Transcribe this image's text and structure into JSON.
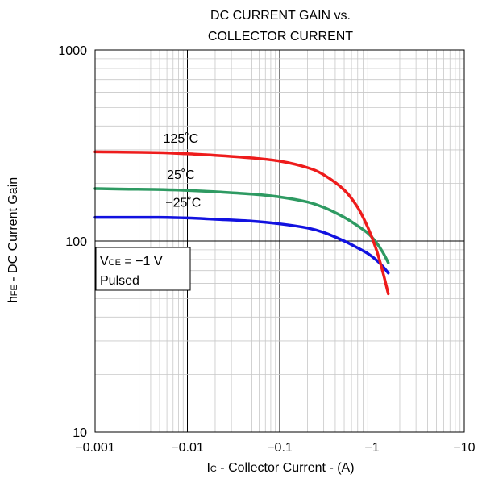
{
  "chart_data": {
    "type": "line",
    "title_line1": "DC CURRENT GAIN vs.",
    "title_line2": "COLLECTOR CURRENT",
    "xlabel": {
      "main": "I",
      "sub": "C",
      "rest": " - Collector Current - (A)"
    },
    "ylabel": {
      "main": "h",
      "sub": "FE",
      "rest": " - DC Current Gain"
    },
    "x_scale": "log",
    "y_scale": "log",
    "xlim": [
      -0.001,
      -10
    ],
    "ylim": [
      10,
      1000
    ],
    "x_ticks": [
      "−0.001",
      "−0.01",
      "−0.1",
      "−1",
      "−10"
    ],
    "y_ticks": [
      "10",
      "100",
      "1000"
    ],
    "grid": true,
    "annotation": {
      "line1_main": "V",
      "line1_sub": "CE",
      "line1_rest": " = −1 V",
      "line2": "Pulsed"
    },
    "series": [
      {
        "name": "125˚C",
        "color": "#ee1c1c",
        "points": [
          [
            -0.001,
            293
          ],
          [
            -0.002,
            292
          ],
          [
            -0.005,
            290
          ],
          [
            -0.01,
            286
          ],
          [
            -0.02,
            281
          ],
          [
            -0.05,
            272
          ],
          [
            -0.1,
            262
          ],
          [
            -0.2,
            242
          ],
          [
            -0.3,
            222
          ],
          [
            -0.5,
            185
          ],
          [
            -0.7,
            150
          ],
          [
            -0.9,
            118
          ],
          [
            -1.1,
            92
          ],
          [
            -1.3,
            70
          ],
          [
            -1.5,
            53
          ]
        ]
      },
      {
        "name": "25˚C",
        "color": "#2e9a62",
        "points": [
          [
            -0.001,
            188
          ],
          [
            -0.002,
            187
          ],
          [
            -0.005,
            186
          ],
          [
            -0.01,
            184
          ],
          [
            -0.02,
            181
          ],
          [
            -0.05,
            176
          ],
          [
            -0.1,
            170
          ],
          [
            -0.2,
            160
          ],
          [
            -0.3,
            150
          ],
          [
            -0.5,
            133
          ],
          [
            -0.7,
            120
          ],
          [
            -0.9,
            110
          ],
          [
            -1.1,
            99
          ],
          [
            -1.3,
            88
          ],
          [
            -1.5,
            77
          ]
        ]
      },
      {
        "name": "−25˚C",
        "color": "#1212e0",
        "points": [
          [
            -0.001,
            133
          ],
          [
            -0.002,
            133
          ],
          [
            -0.005,
            133
          ],
          [
            -0.01,
            132
          ],
          [
            -0.02,
            130
          ],
          [
            -0.05,
            127
          ],
          [
            -0.1,
            123
          ],
          [
            -0.2,
            117
          ],
          [
            -0.3,
            111
          ],
          [
            -0.5,
            100
          ],
          [
            -0.7,
            92
          ],
          [
            -0.9,
            86
          ],
          [
            -1.1,
            80
          ],
          [
            -1.3,
            74
          ],
          [
            -1.5,
            68
          ]
        ]
      }
    ]
  }
}
